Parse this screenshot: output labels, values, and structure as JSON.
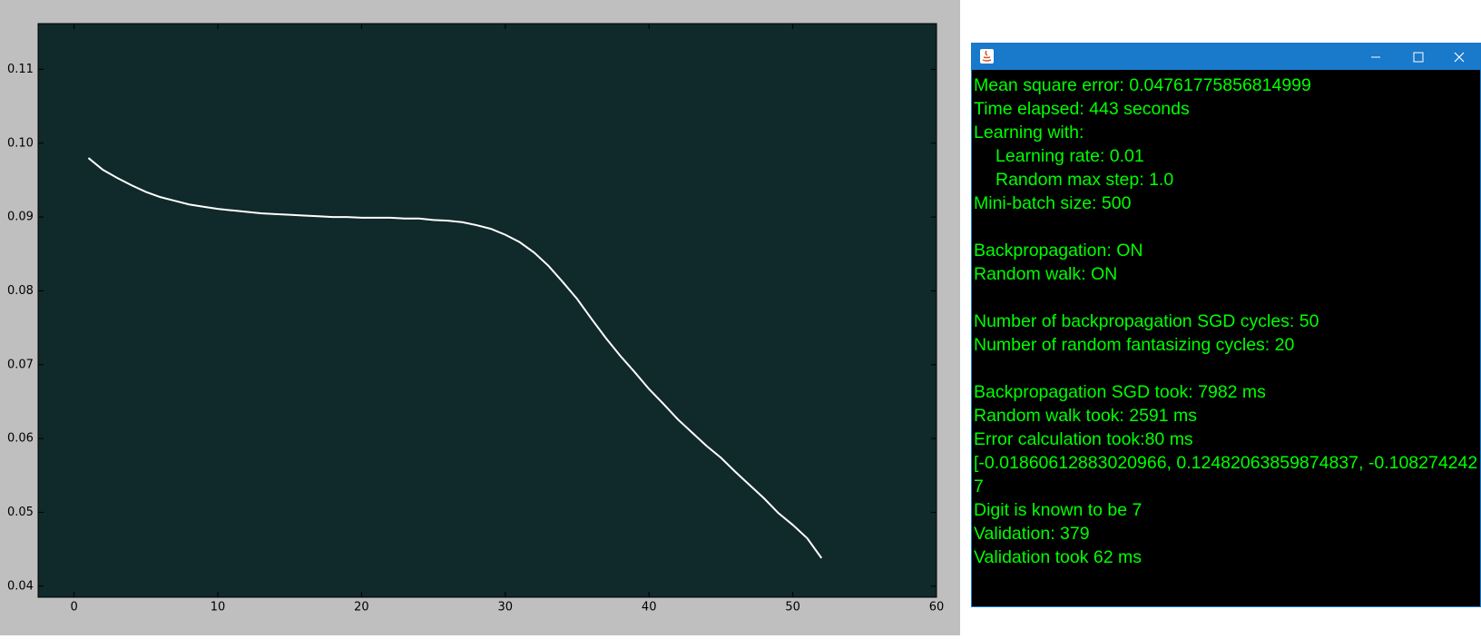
{
  "chart_data": {
    "type": "line",
    "x": [
      1,
      2,
      3,
      4,
      5,
      6,
      7,
      8,
      9,
      10,
      11,
      12,
      13,
      14,
      15,
      16,
      17,
      18,
      19,
      20,
      21,
      22,
      23,
      24,
      25,
      26,
      27,
      28,
      29,
      30,
      31,
      32,
      33,
      34,
      35,
      36,
      37,
      38,
      39,
      40,
      41,
      42,
      43,
      44,
      45,
      46,
      47,
      48,
      49,
      50,
      51,
      52
    ],
    "values": [
      0.098,
      0.0964,
      0.0953,
      0.0943,
      0.0934,
      0.0927,
      0.0922,
      0.0917,
      0.0914,
      0.0911,
      0.0909,
      0.0907,
      0.0905,
      0.0904,
      0.0903,
      0.0902,
      0.0901,
      0.09,
      0.09,
      0.0899,
      0.0899,
      0.0899,
      0.0898,
      0.0898,
      0.0896,
      0.0895,
      0.0893,
      0.0889,
      0.0884,
      0.0876,
      0.0866,
      0.0852,
      0.0834,
      0.0812,
      0.0789,
      0.0762,
      0.0736,
      0.0712,
      0.069,
      0.0667,
      0.0647,
      0.0626,
      0.0608,
      0.059,
      0.0574,
      0.0555,
      0.0537,
      0.0519,
      0.0499,
      0.0483,
      0.0465,
      0.0438
    ],
    "color": "#ffffff",
    "xlim": [
      -2.5,
      60
    ],
    "ylim": [
      0.0385,
      0.1162
    ],
    "xticks": [
      0,
      10,
      20,
      30,
      40,
      50,
      60
    ],
    "yticks": [
      0.04,
      0.05,
      0.06,
      0.07,
      0.08,
      0.09,
      0.1,
      {
        "value": 0.1,
        "label": "0.10"
      },
      0.11
    ]
  },
  "console": {
    "sections": [
      [
        "Mean square error: 0.04761775856814999",
        "Time elapsed: 443 seconds",
        {
          "label": "Learning with:",
          "items": [
            "Learning rate: 0.01",
            "Random max step: 1.0"
          ]
        },
        "Mini-batch size: 500"
      ],
      [
        "Backpropagation: ON",
        "Random walk: ON"
      ],
      [
        "Number of backpropagation SGD cycles: 50",
        "Number of random fantasizing cycles: 20"
      ],
      [
        "Backpropagation SGD took: 7982 ms",
        "Random walk took: 2591 ms",
        "Error calculation took:80 ms",
        "[-0.01860612883020966, 0.12482063859874837, -0.108274242",
        "7",
        "Digit is known to be 7",
        "Validation: 379",
        "Validation took 62 ms"
      ]
    ]
  }
}
